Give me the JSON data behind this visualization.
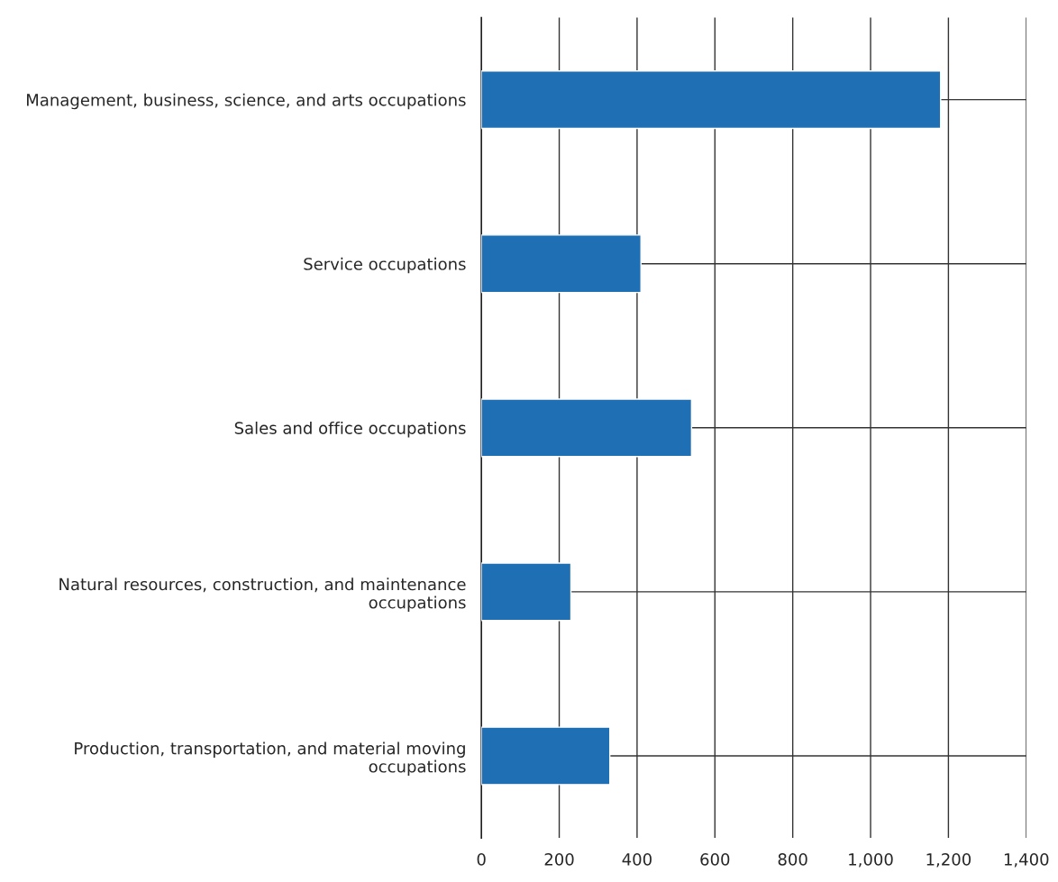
{
  "chart_data": {
    "type": "bar",
    "orientation": "horizontal",
    "categories": [
      "Management, business, science, and arts occupations",
      "Service occupations",
      "Sales and office occupations",
      "Natural resources, construction, and maintenance\noccupations",
      "Production, transportation, and material moving\noccupations"
    ],
    "values": [
      1180,
      410,
      540,
      230,
      330
    ],
    "color": "#1f6fb5",
    "xlim": [
      0,
      1400
    ],
    "xticks": [
      0,
      200,
      400,
      600,
      800,
      {
        "value": 1000,
        "label": "1,000"
      },
      {
        "value": 1200,
        "label": "1,200"
      },
      {
        "value": 1400,
        "label": "1,400"
      }
    ],
    "grid": true
  }
}
